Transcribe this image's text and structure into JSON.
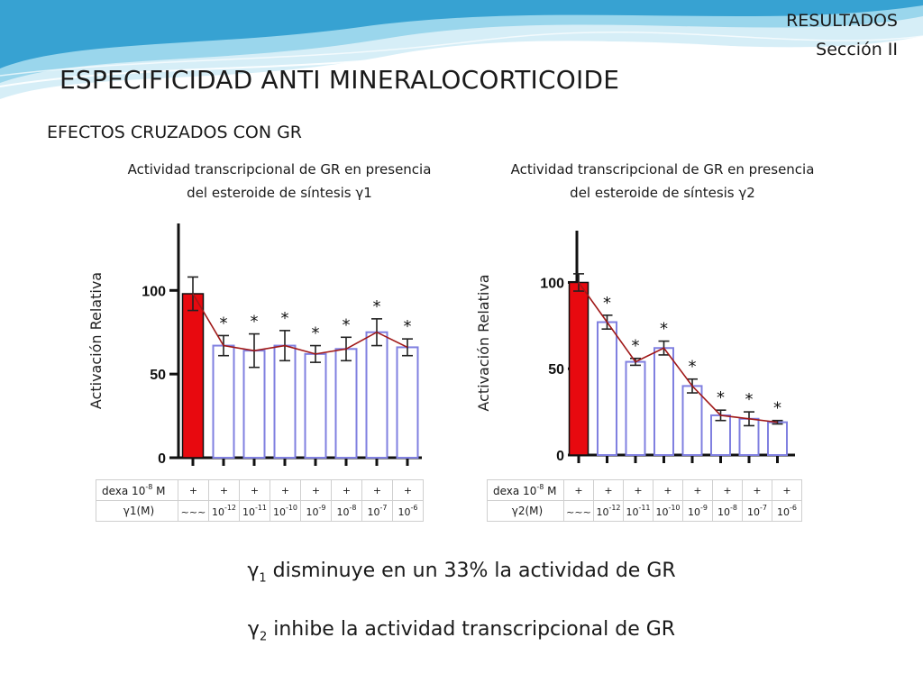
{
  "header": {
    "section_label": "RESULTADOS",
    "section_sub": "Sección II",
    "title": "ESPECIFICIDAD ANTI MINERALOCORTICOIDE",
    "subtitle": "EFECTOS CRUZADOS CON GR"
  },
  "chart_data": [
    {
      "type": "bar",
      "title_line1": "Actividad transcripcional de GR en presencia",
      "title_line2": "del esteroide de síntesis γ1",
      "ylabel": "Activación Relativa",
      "ylim": [
        0,
        140
      ],
      "yticks": [
        "0",
        "50",
        "100"
      ],
      "ytick_values": [
        0,
        50,
        100
      ],
      "values": [
        98,
        67,
        64,
        67,
        62,
        65,
        75,
        66
      ],
      "errors": [
        10,
        6,
        10,
        9,
        5,
        7,
        8,
        5
      ],
      "significant": [
        false,
        true,
        true,
        true,
        true,
        true,
        true,
        true
      ],
      "colors": {
        "control_fill": "#e8090f",
        "bar_stroke": "#8080e0",
        "trend_line": "#a01818"
      },
      "table": {
        "row1_label": "dexa 10",
        "row1_exp": "-8",
        "row1_unit": " M",
        "row1_values": [
          "+",
          "+",
          "+",
          "+",
          "+",
          "+",
          "+",
          "+"
        ],
        "row2_label": "γ1(M)",
        "row2_values": [
          {
            "base": "~~~",
            "exp": ""
          },
          {
            "base": "10",
            "exp": "-12"
          },
          {
            "base": "10",
            "exp": "-11"
          },
          {
            "base": "10",
            "exp": "-10"
          },
          {
            "base": "10",
            "exp": "-9"
          },
          {
            "base": "10",
            "exp": "-8"
          },
          {
            "base": "10",
            "exp": "-7"
          },
          {
            "base": "10",
            "exp": "-6"
          }
        ]
      }
    },
    {
      "type": "bar",
      "title_line1": "Actividad transcripcional de GR en presencia",
      "title_line2": "del esteroide de síntesis γ2",
      "ylabel": "Activación Relativa",
      "ylim": [
        0,
        130
      ],
      "yticks": [
        "0",
        "50",
        "100"
      ],
      "ytick_values": [
        0,
        50,
        100
      ],
      "values": [
        100,
        77,
        54,
        62,
        40,
        23,
        21,
        19
      ],
      "errors": [
        5,
        4,
        2,
        4,
        4,
        3,
        4,
        1
      ],
      "significant": [
        false,
        true,
        true,
        true,
        true,
        true,
        true,
        true
      ],
      "colors": {
        "control_fill": "#e8090f",
        "bar_stroke": "#8080e0",
        "trend_line": "#a01818"
      },
      "table": {
        "row1_label": "dexa 10",
        "row1_exp": "-8",
        "row1_unit": " M",
        "row1_values": [
          "+",
          "+",
          "+",
          "+",
          "+",
          "+",
          "+",
          "+"
        ],
        "row2_label": "γ2(M)",
        "row2_values": [
          {
            "base": "~~~",
            "exp": ""
          },
          {
            "base": "10",
            "exp": "-12"
          },
          {
            "base": "10",
            "exp": "-11"
          },
          {
            "base": "10",
            "exp": "-10"
          },
          {
            "base": "10",
            "exp": "-9"
          },
          {
            "base": "10",
            "exp": "-8"
          },
          {
            "base": "10",
            "exp": "-7"
          },
          {
            "base": "10",
            "exp": "-6"
          }
        ]
      }
    }
  ],
  "notes": {
    "note1_sym": "γ",
    "note1_sub": "1",
    "note1_text": " disminuye en un 33% la actividad de GR",
    "note2_sym": "γ",
    "note2_sub": "2",
    "note2_text": " inhibe la actividad transcripcional de GR"
  },
  "theme": {
    "wave_light": "#d6eef7",
    "wave_mid": "#8fd1ea",
    "wave_dark": "#2c9ccf"
  }
}
